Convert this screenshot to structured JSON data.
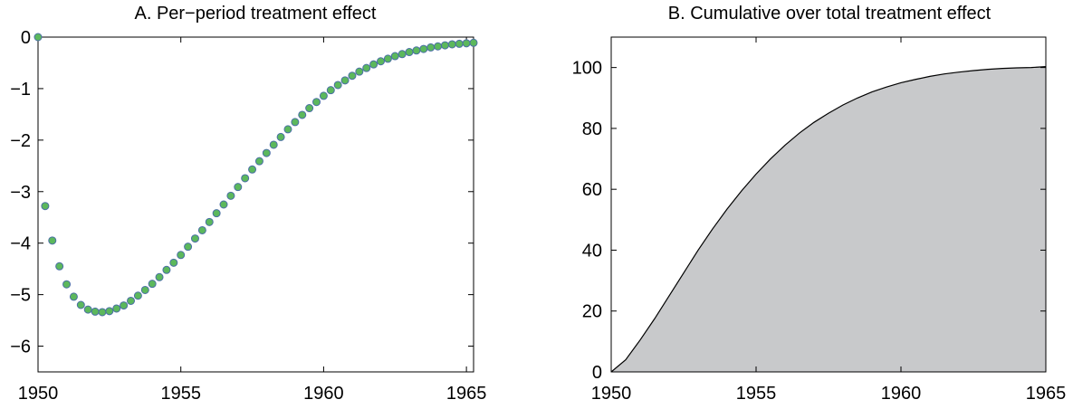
{
  "chart_data": [
    {
      "type": "scatter",
      "title": "A. Per−period treatment effect",
      "xlabel": "",
      "ylabel": "",
      "xlim": [
        1950,
        1965.25
      ],
      "ylim": [
        -6.5,
        0
      ],
      "xticks": [
        1950,
        1955,
        1960,
        1965
      ],
      "yticks": [
        0,
        -1,
        -2,
        -3,
        -4,
        -5,
        -6
      ],
      "ytick_labels": [
        "0",
        "−1",
        "−2",
        "−3",
        "−4",
        "−5",
        "−6"
      ],
      "grid": false,
      "marker_fill": "#5cb85c",
      "marker_edge": "#4a6fa5",
      "x": [
        1950.0,
        1950.25,
        1950.5,
        1950.75,
        1951.0,
        1951.25,
        1951.5,
        1951.75,
        1952.0,
        1952.25,
        1952.5,
        1952.75,
        1953.0,
        1953.25,
        1953.5,
        1953.75,
        1954.0,
        1954.25,
        1954.5,
        1954.75,
        1955.0,
        1955.25,
        1955.5,
        1955.75,
        1956.0,
        1956.25,
        1956.5,
        1956.75,
        1957.0,
        1957.25,
        1957.5,
        1957.75,
        1958.0,
        1958.25,
        1958.5,
        1958.75,
        1959.0,
        1959.25,
        1959.5,
        1959.75,
        1960.0,
        1960.25,
        1960.5,
        1960.75,
        1961.0,
        1961.25,
        1961.5,
        1961.75,
        1962.0,
        1962.25,
        1962.5,
        1962.75,
        1963.0,
        1963.25,
        1963.5,
        1963.75,
        1964.0,
        1964.25,
        1964.5,
        1964.75,
        1965.0,
        1965.25
      ],
      "y": [
        0.0,
        -3.28,
        -3.95,
        -4.45,
        -4.8,
        -5.04,
        -5.2,
        -5.29,
        -5.33,
        -5.34,
        -5.32,
        -5.27,
        -5.21,
        -5.12,
        -5.02,
        -4.91,
        -4.79,
        -4.66,
        -4.52,
        -4.38,
        -4.23,
        -4.07,
        -3.91,
        -3.75,
        -3.59,
        -3.42,
        -3.25,
        -3.08,
        -2.91,
        -2.74,
        -2.57,
        -2.41,
        -2.25,
        -2.09,
        -1.94,
        -1.79,
        -1.65,
        -1.51,
        -1.38,
        -1.26,
        -1.14,
        -1.03,
        -0.93,
        -0.84,
        -0.75,
        -0.67,
        -0.6,
        -0.53,
        -0.47,
        -0.42,
        -0.37,
        -0.33,
        -0.29,
        -0.26,
        -0.23,
        -0.2,
        -0.18,
        -0.16,
        -0.14,
        -0.13,
        -0.12,
        -0.11
      ]
    },
    {
      "type": "area",
      "title": "B. Cumulative over total treatment effect",
      "xlabel": "",
      "ylabel": "",
      "xlim": [
        1950,
        1965
      ],
      "ylim": [
        0,
        110
      ],
      "xticks": [
        1950,
        1955,
        1960,
        1965
      ],
      "yticks": [
        0,
        20,
        40,
        60,
        80,
        100
      ],
      "grid": false,
      "fill_color": "#c8c9cb",
      "line_color": "#000000",
      "x": [
        1950.0,
        1950.5,
        1951.0,
        1951.5,
        1952.0,
        1952.5,
        1953.0,
        1953.5,
        1954.0,
        1954.5,
        1955.0,
        1955.5,
        1956.0,
        1956.5,
        1957.0,
        1957.5,
        1958.0,
        1958.5,
        1959.0,
        1959.5,
        1960.0,
        1960.5,
        1961.0,
        1961.5,
        1962.0,
        1962.5,
        1963.0,
        1963.5,
        1964.0,
        1964.5,
        1965.0
      ],
      "y": [
        0.0,
        4.0,
        10.5,
        17.5,
        25.0,
        32.5,
        40.0,
        47.0,
        53.5,
        59.5,
        65.0,
        70.0,
        74.5,
        78.5,
        82.0,
        85.0,
        87.7,
        90.0,
        92.0,
        93.6,
        95.0,
        96.1,
        97.1,
        97.9,
        98.5,
        99.0,
        99.4,
        99.7,
        99.9,
        100.0,
        100.3
      ]
    }
  ]
}
